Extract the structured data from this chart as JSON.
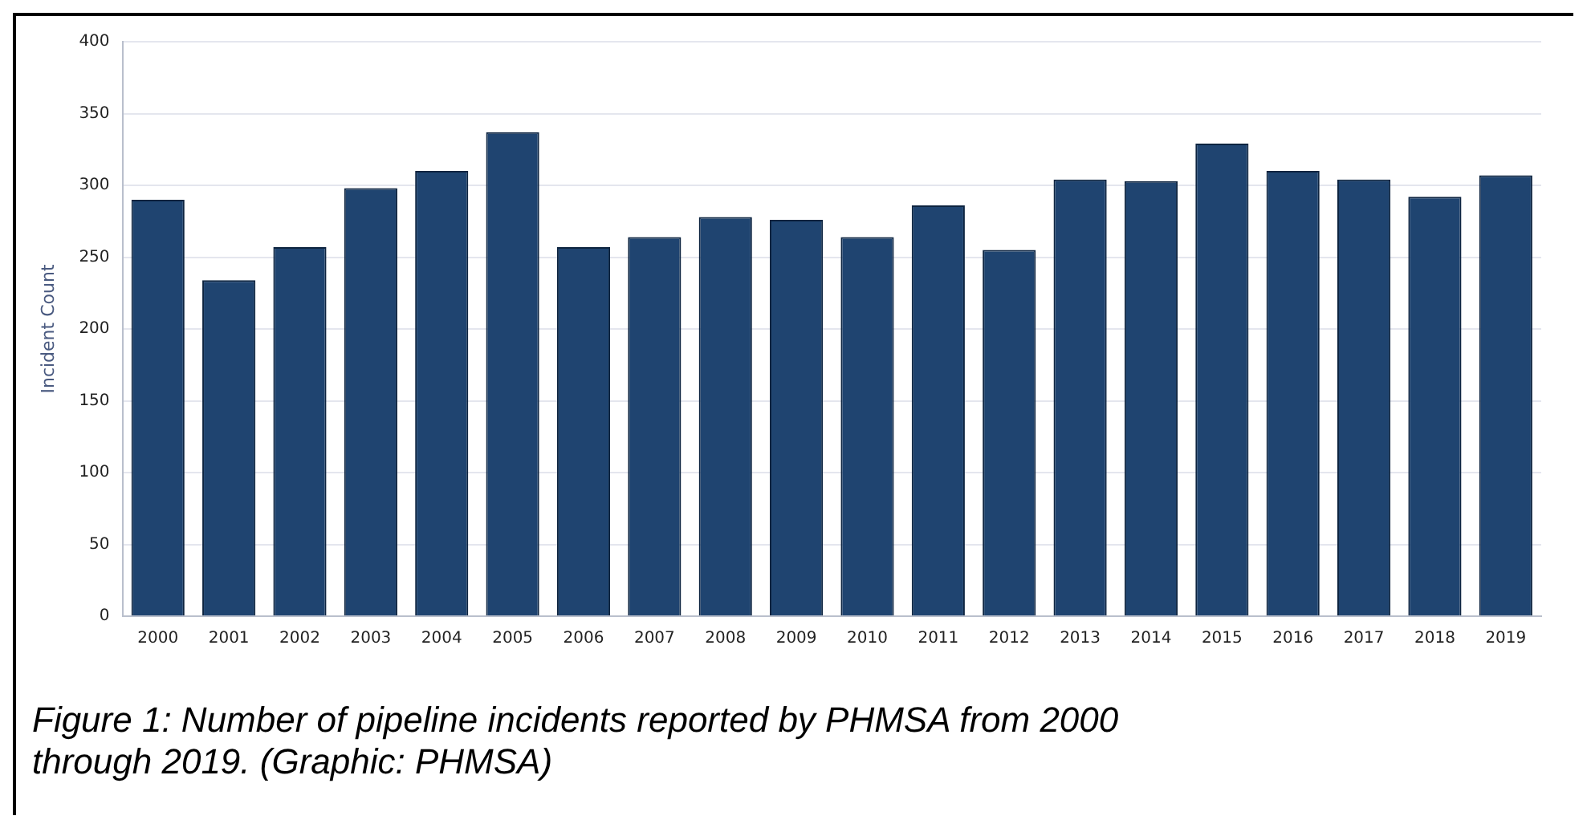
{
  "chart_data": {
    "type": "bar",
    "ylabel": "Incident Count",
    "categories": [
      "2000",
      "2001",
      "2002",
      "2003",
      "2004",
      "2005",
      "2006",
      "2007",
      "2008",
      "2009",
      "2010",
      "2011",
      "2012",
      "2013",
      "2014",
      "2015",
      "2016",
      "2017",
      "2018",
      "2019"
    ],
    "values": [
      290,
      234,
      257,
      298,
      310,
      337,
      257,
      264,
      278,
      276,
      264,
      286,
      255,
      304,
      303,
      329,
      310,
      304,
      292,
      307
    ],
    "color": "#1f4470",
    "ylim": [
      0,
      400
    ],
    "yticks": [
      0,
      50,
      100,
      150,
      200,
      250,
      300,
      350,
      400
    ],
    "grid": "y",
    "annotations": [
      "Figure 1: Number of pipeline incidents reported by PHMSA from 2000 through 2019. (Graphic: PHMSA)"
    ]
  }
}
